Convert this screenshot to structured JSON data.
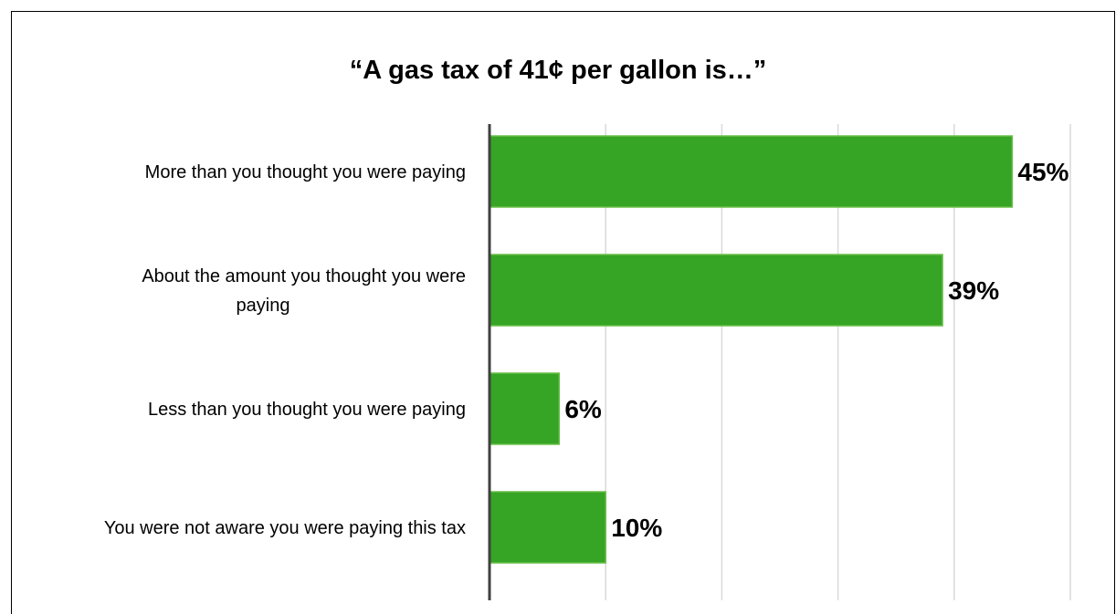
{
  "chart_data": {
    "type": "bar",
    "orientation": "horizontal",
    "title": "“A gas tax of 41¢ per gallon is…”",
    "categories": [
      [
        "More than you thought you were paying"
      ],
      [
        "About the amount you thought you were",
        "paying"
      ],
      [
        "Less than you thought you were paying"
      ],
      [
        "You were not aware you were paying this tax"
      ]
    ],
    "values": [
      45,
      39,
      6,
      10
    ],
    "value_labels": [
      "45%",
      "39%",
      "6%",
      "10%"
    ],
    "xlim": [
      0,
      50
    ],
    "grid": true,
    "bar_color": "#36a424",
    "bar_edge_color": "#6abf4b",
    "axis_color": "#404040",
    "grid_color": "#d9d9d9"
  }
}
